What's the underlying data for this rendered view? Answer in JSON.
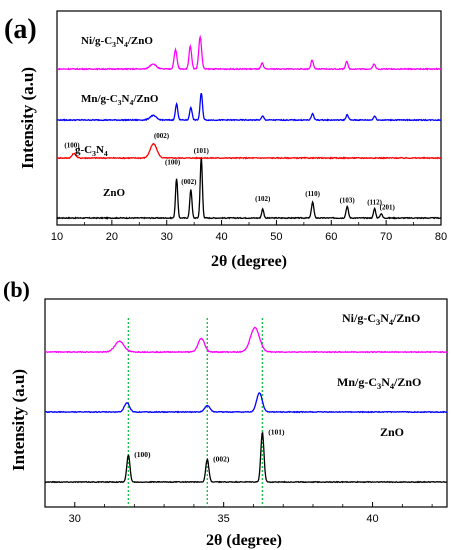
{
  "chart_data": [
    {
      "type": "line",
      "panel_label": "(a)",
      "xlabel": "2θ (degree)",
      "ylabel": "Intensity (a.u)",
      "xlim": [
        10,
        80
      ],
      "x_ticks": [
        "10",
        "20",
        "30",
        "40",
        "50",
        "60",
        "70",
        "80"
      ],
      "y_ticks_shown": false,
      "grid": false,
      "series": [
        {
          "name": "ZnO",
          "color": "#000000",
          "baseline": 0,
          "peaks": [
            {
              "x": 31.8,
              "h": 0.62,
              "w": 0.45,
              "label": "(100)"
            },
            {
              "x": 34.4,
              "h": 0.45,
              "w": 0.45,
              "label": "(002)"
            },
            {
              "x": 36.3,
              "h": 0.95,
              "w": 0.45,
              "label": "(101)"
            },
            {
              "x": 47.5,
              "h": 0.14,
              "w": 0.45,
              "label": "(102)"
            },
            {
              "x": 56.6,
              "h": 0.25,
              "w": 0.5,
              "label": "(110)"
            },
            {
              "x": 62.9,
              "h": 0.18,
              "w": 0.5,
              "label": "(103)"
            },
            {
              "x": 67.9,
              "h": 0.15,
              "w": 0.45,
              "label": "(112)"
            },
            {
              "x": 69.1,
              "h": 0.07,
              "w": 0.45,
              "label": "(201)"
            }
          ]
        },
        {
          "name": "g-C3N4",
          "label_main": "g-C",
          "label_sub1": "3",
          "label_mid": "N",
          "label_sub2": "4",
          "color": "#ff0000",
          "baseline": 1.35,
          "peaks": [
            {
              "x": 13.1,
              "h": 0.07,
              "w": 0.8,
              "label": "(100)"
            },
            {
              "x": 27.6,
              "h": 0.22,
              "w": 1.4,
              "label": "(002)"
            }
          ]
        },
        {
          "name": "Mn/g-C3N4/ZnO",
          "label_main": "Mn/g-C",
          "label_sub1": "3",
          "label_mid": "N",
          "label_sub2": "4",
          "label_tail": "/ZnO",
          "color": "#0000ff",
          "baseline": 2.0,
          "peaks": [
            {
              "x": 27.5,
              "h": 0.07,
              "w": 1.3
            },
            {
              "x": 31.8,
              "h": 0.25,
              "w": 0.5
            },
            {
              "x": 34.4,
              "h": 0.2,
              "w": 0.5
            },
            {
              "x": 36.3,
              "h": 0.42,
              "w": 0.5
            },
            {
              "x": 47.5,
              "h": 0.06,
              "w": 0.5
            },
            {
              "x": 56.6,
              "h": 0.1,
              "w": 0.5
            },
            {
              "x": 62.9,
              "h": 0.08,
              "w": 0.5
            },
            {
              "x": 67.9,
              "h": 0.06,
              "w": 0.5
            }
          ]
        },
        {
          "name": "Ni/g-C3N4/ZnO",
          "label_main": "Ni/g-C",
          "label_sub1": "3",
          "label_mid": "N",
          "label_sub2": "4",
          "label_tail": "/ZnO",
          "color": "#ff00ff",
          "baseline": 2.9,
          "peaks": [
            {
              "x": 27.5,
              "h": 0.08,
              "w": 1.3
            },
            {
              "x": 31.6,
              "h": 0.3,
              "w": 0.6
            },
            {
              "x": 34.3,
              "h": 0.36,
              "w": 0.55
            },
            {
              "x": 36.1,
              "h": 0.5,
              "w": 0.6
            },
            {
              "x": 47.4,
              "h": 0.09,
              "w": 0.5
            },
            {
              "x": 56.5,
              "h": 0.14,
              "w": 0.5
            },
            {
              "x": 62.8,
              "h": 0.12,
              "w": 0.5
            },
            {
              "x": 67.8,
              "h": 0.08,
              "w": 0.5
            }
          ]
        }
      ]
    },
    {
      "type": "line",
      "panel_label": "(b)",
      "xlabel": "2θ (degree)",
      "ylabel": "Intensity (a.u)",
      "xlim": [
        29,
        42.5
      ],
      "x_ticks": [
        "30",
        "35",
        "40"
      ],
      "y_ticks_shown": false,
      "grid": false,
      "reference_lines": [
        31.8,
        34.45,
        36.3
      ],
      "series": [
        {
          "name": "ZnO",
          "color": "#000000",
          "baseline": 0,
          "peaks": [
            {
              "x": 31.8,
              "h": 0.5,
              "w": 0.12,
              "label": "(100)"
            },
            {
              "x": 34.45,
              "h": 0.42,
              "w": 0.12,
              "label": "(002)"
            },
            {
              "x": 36.3,
              "h": 0.92,
              "w": 0.12,
              "label": "(101)"
            }
          ]
        },
        {
          "name": "Mn/g-C3N4/ZnO",
          "label_main": "Mn/g-C",
          "label_sub1": "3",
          "label_mid": "N",
          "label_sub2": "4",
          "label_tail": "/ZnO",
          "color": "#0000ff",
          "baseline": 1.38,
          "peaks": [
            {
              "x": 31.75,
              "h": 0.17,
              "w": 0.2
            },
            {
              "x": 34.45,
              "h": 0.12,
              "w": 0.2
            },
            {
              "x": 36.2,
              "h": 0.35,
              "w": 0.22
            }
          ]
        },
        {
          "name": "Ni/g-C3N4/ZnO",
          "label_main": "Ni/g-C",
          "label_sub1": "3",
          "label_mid": "N",
          "label_sub2": "4",
          "label_tail": "/ZnO",
          "color": "#ff00ff",
          "baseline": 2.25,
          "peaks": [
            {
              "x": 31.5,
              "h": 0.2,
              "w": 0.35
            },
            {
              "x": 34.25,
              "h": 0.25,
              "w": 0.25
            },
            {
              "x": 36.05,
              "h": 0.45,
              "w": 0.35
            }
          ]
        }
      ]
    }
  ]
}
